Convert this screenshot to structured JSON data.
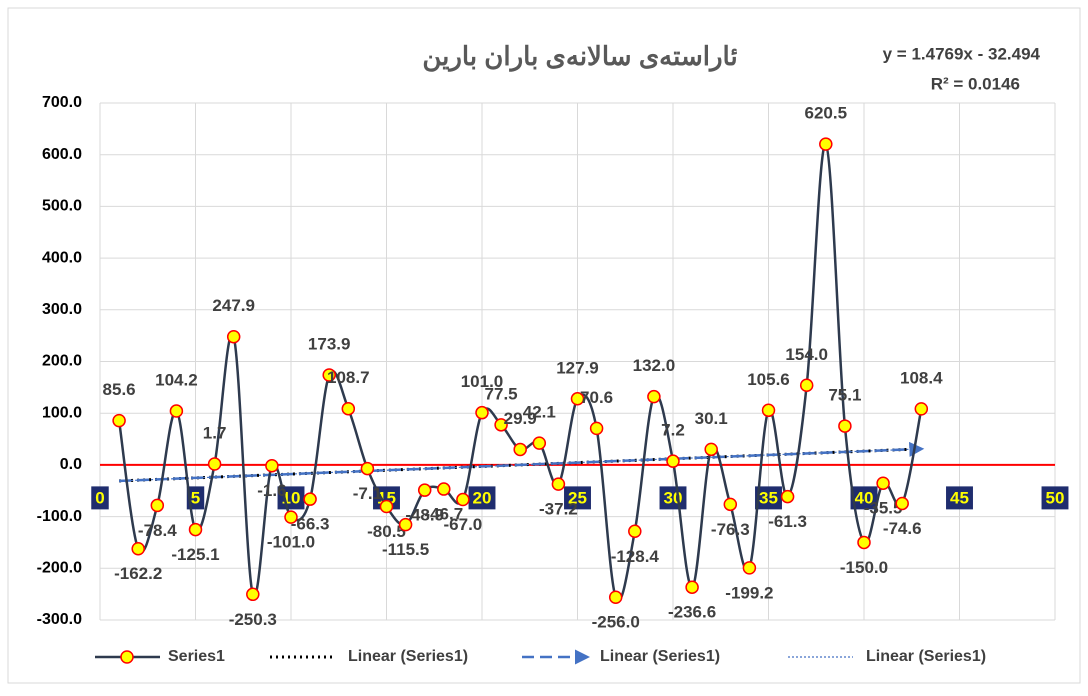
{
  "chart_data": {
    "type": "scatter",
    "title": "ئاراستەی سالانەی باران بارین",
    "trend_equation": "y = 1.4769x - 32.494",
    "trend_r2": "R² = 0.0146",
    "x": [
      1,
      2,
      3,
      4,
      5,
      6,
      7,
      8,
      9,
      10,
      11,
      12,
      13,
      14,
      15,
      16,
      17,
      18,
      19,
      20,
      21,
      22,
      23,
      24,
      25,
      26,
      27,
      28,
      29,
      30,
      31,
      32,
      33,
      34,
      35,
      36,
      37,
      38,
      39,
      40,
      41,
      42,
      43
    ],
    "series": [
      {
        "name": "Series1",
        "color": "#2e3a4e",
        "marker_fill": "#ffff00",
        "marker_stroke": "#ff0000",
        "values": [
          85.6,
          -162.2,
          -78.4,
          104.2,
          -125.1,
          1.7,
          247.9,
          -250.3,
          -1.6,
          -101.0,
          -66.3,
          173.9,
          108.7,
          -7.1,
          -80.5,
          -115.5,
          -48.9,
          -46.7,
          -67.0,
          101.0,
          77.5,
          29.9,
          42.1,
          -37.2,
          127.9,
          70.6,
          -256.0,
          -128.4,
          132.0,
          7.2,
          -236.6,
          30.1,
          -76.3,
          -199.2,
          105.6,
          -61.3,
          154.0,
          620.5,
          75.1,
          -150.0,
          -35.5,
          -74.6,
          108.4
        ],
        "value_labels": [
          "85.6",
          "-162.2",
          "-78.4",
          "104.2",
          "-125.1",
          "1.7",
          "247.9",
          "-250.3",
          "-1.6",
          "-101.0",
          "-66.3",
          "173.9",
          "108.7",
          "-7.1",
          "-80.5",
          "-115.5",
          "-48.9",
          "-46.7",
          "-67.0",
          "101.0",
          "77.5",
          "29.9",
          "42.1",
          "-37.2",
          "127.9",
          "70.6",
          "-256.0",
          "-128.4",
          "132.0",
          "7.2",
          "-236.6",
          "30.1",
          "-76.3",
          "-199.2",
          "105.6",
          "-61.3",
          "154.0",
          "620.5",
          "75.1",
          "-150.0",
          "-35.5",
          "-74.6",
          "108.4"
        ]
      }
    ],
    "trendlines": [
      {
        "name": "Linear (Series1)",
        "color": "#000000",
        "style": "dotted",
        "slope": 1.4769,
        "intercept": -32.494
      },
      {
        "name": "Linear (Series1)",
        "color": "#4472c4",
        "style": "dashed-arrow",
        "slope": 1.4769,
        "intercept": -32.494
      },
      {
        "name": "Linear (Series1)",
        "color": "#4472c4",
        "style": "thin-dotted",
        "slope": 1.4769,
        "intercept": -32.494
      }
    ],
    "xlim": [
      0,
      50
    ],
    "xticks": [
      0,
      5,
      10,
      15,
      20,
      25,
      30,
      35,
      40,
      45,
      50
    ],
    "ylim": [
      -300,
      700
    ],
    "yticks": [
      {
        "value": -300,
        "label": "-300.0"
      },
      {
        "value": -200,
        "label": "-200.0"
      },
      {
        "value": -100,
        "label": "-100.0"
      },
      {
        "value": 0,
        "label": "0.0"
      },
      {
        "value": 100,
        "label": "100.0"
      },
      {
        "value": 200,
        "label": "200.0"
      },
      {
        "value": 300,
        "label": "300.0"
      },
      {
        "value": 400,
        "label": "400.0"
      },
      {
        "value": 500,
        "label": "500.0"
      },
      {
        "value": 600,
        "label": "600.0"
      },
      {
        "value": 700,
        "label": "700.0"
      }
    ],
    "grid": true,
    "zero_line_color": "#ff0000",
    "legend": "bottom"
  }
}
